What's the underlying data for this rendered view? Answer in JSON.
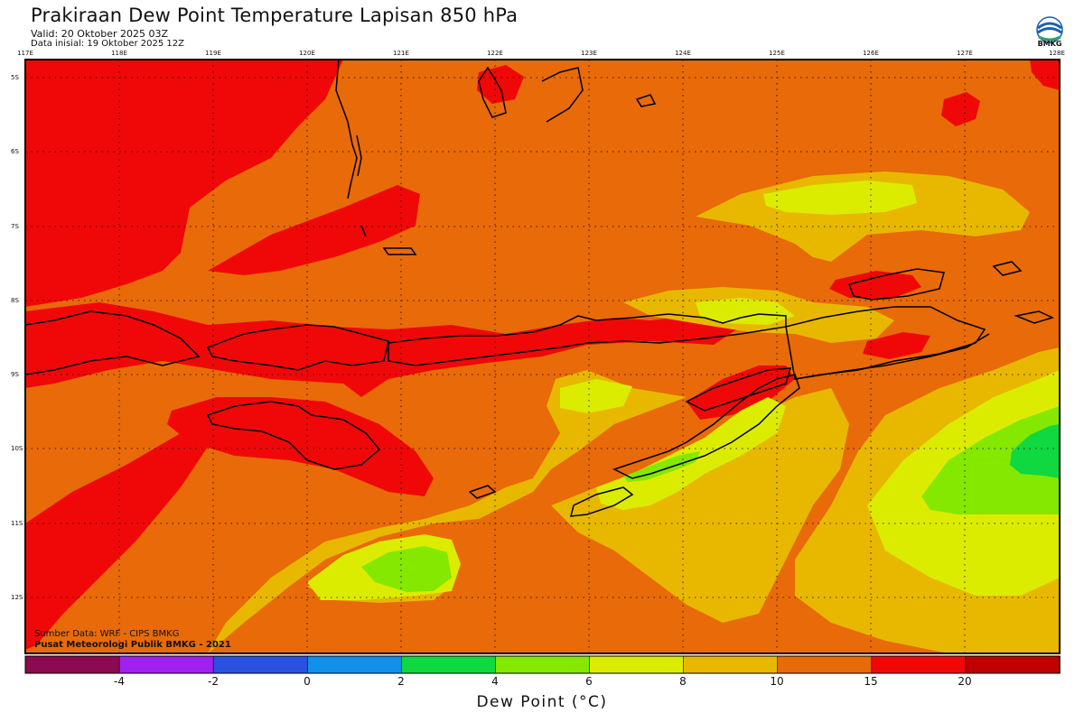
{
  "header": {
    "title": "Prakiraan Dew Point Temperature Lapisan 850 hPa",
    "valid": "Valid: 20 Oktober 2025 03Z",
    "init": "Data inisial: 19 Oktober 2025 12Z"
  },
  "logo": {
    "text": "BMKG",
    "icon": "bmkg-logo-icon"
  },
  "axes": {
    "lon_labels": [
      "117E",
      "118E",
      "119E",
      "120E",
      "121E",
      "122E",
      "123E",
      "124E",
      "125E",
      "126E",
      "127E",
      "128E"
    ],
    "lat_labels": [
      "5S",
      "6S",
      "7S",
      "8S",
      "9S",
      "10S",
      "11S",
      "12S"
    ],
    "lon_range": [
      117,
      128
    ],
    "lat_range": [
      -4.75,
      -12.75
    ],
    "grid": "dotted"
  },
  "legend": {
    "title": "Dew Point (°C)",
    "tick_labels": [
      "-4",
      "-2",
      "0",
      "2",
      "4",
      "6",
      "8",
      "10",
      "15",
      "20"
    ],
    "colors": [
      "#8b0a50",
      "#a020f0",
      "#2a52e0",
      "#1090e8",
      "#10d840",
      "#84e800",
      "#dcec00",
      "#e8b800",
      "#e86a08",
      "#f00808",
      "#c00000"
    ]
  },
  "credits": {
    "source": "Sumber Data: WRF - CIPS BMKG",
    "org": "Pusat Meteorologi Publik BMKG - 2021"
  },
  "colors": {
    "orange": "#e86a08",
    "red": "#f00808",
    "yellow_orange": "#e8b800",
    "yellow": "#dcec00",
    "green_yellow": "#84e800",
    "green": "#10d840"
  }
}
